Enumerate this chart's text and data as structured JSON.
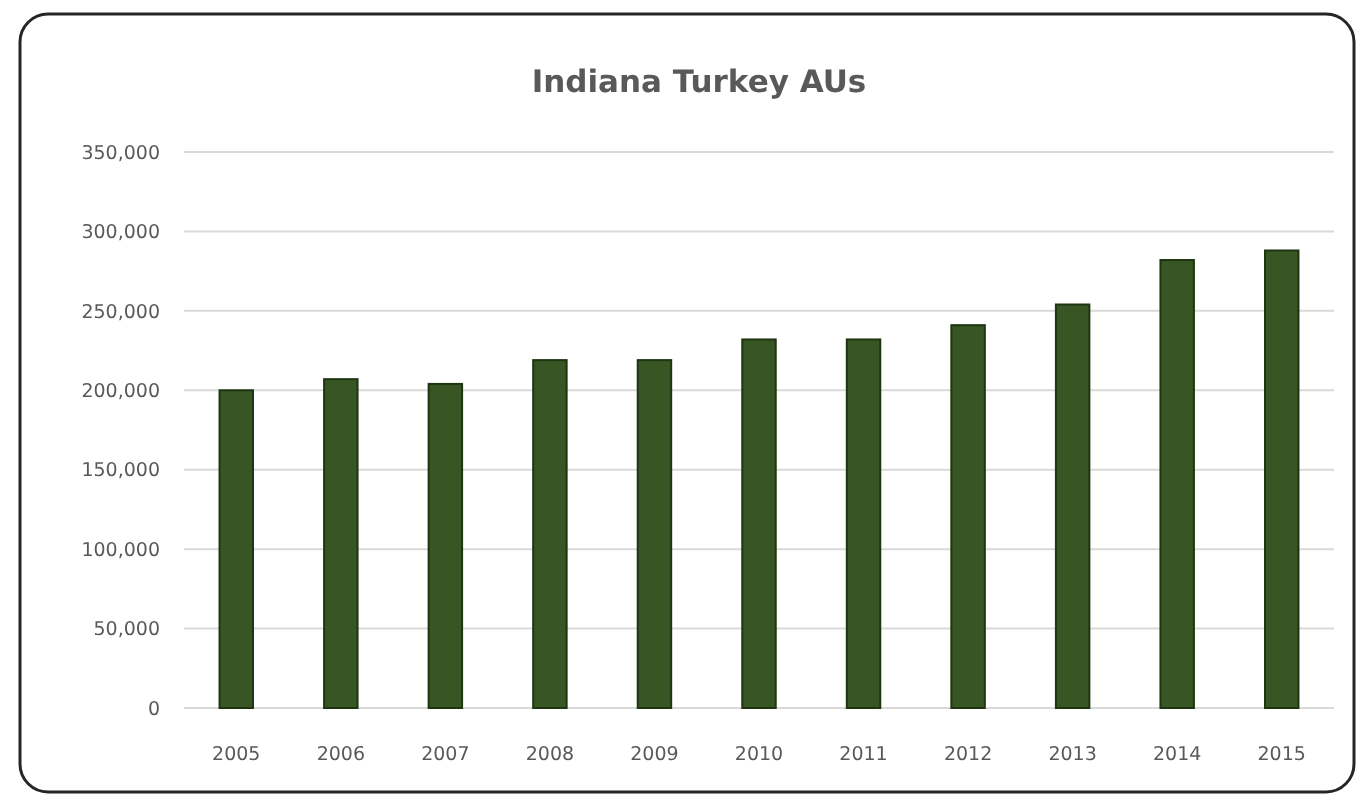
{
  "chart_data": {
    "type": "bar",
    "title": "Indiana Turkey AUs",
    "categories": [
      "2005",
      "2006",
      "2007",
      "2008",
      "2009",
      "2010",
      "2011",
      "2012",
      "2013",
      "2014",
      "2015"
    ],
    "values": [
      200000,
      207000,
      204000,
      219000,
      219000,
      232000,
      232000,
      241000,
      254000,
      282000,
      288000
    ],
    "color": "#375623",
    "ylim": [
      0,
      350000
    ],
    "yticks": [
      0,
      {
        "value": 50000,
        "label": "50,000"
      },
      {
        "value": 100000,
        "label": "100,000"
      },
      {
        "value": 150000,
        "label": "150,000"
      },
      {
        "value": 200000,
        "label": "200,000"
      },
      {
        "value": 250000,
        "label": "250,000"
      },
      {
        "value": 300000,
        "label": "300,000"
      },
      {
        "value": 350000,
        "label": "350,000"
      }
    ],
    "grid": "y"
  }
}
